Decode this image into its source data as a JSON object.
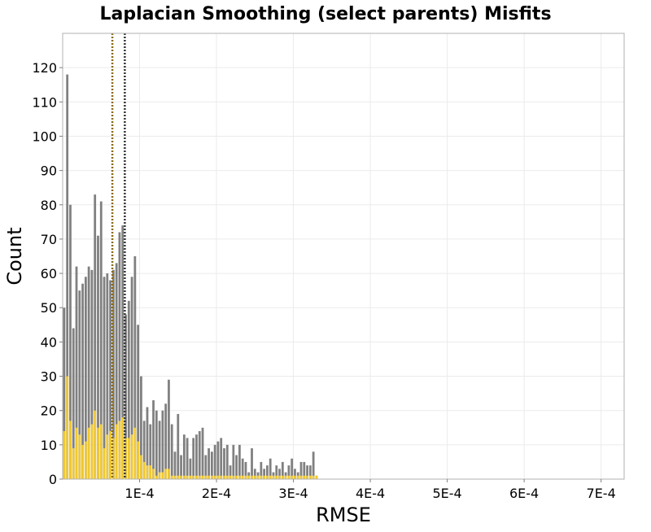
{
  "chart_data": {
    "type": "bar",
    "title": "Laplacian Smoothing (select parents) Misfits",
    "xlabel": "RMSE",
    "ylabel": "Count",
    "xlim": [
      0.0,
      0.00073
    ],
    "ylim": [
      0,
      130
    ],
    "bin_width": 4e-06,
    "x_ticks": [
      {
        "value": 0.0001,
        "label": "1E-4"
      },
      {
        "value": 0.0002,
        "label": "2E-4"
      },
      {
        "value": 0.0003,
        "label": "3E-4"
      },
      {
        "value": 0.0004,
        "label": "4E-4"
      },
      {
        "value": 0.0005,
        "label": "5E-4"
      },
      {
        "value": 0.0006,
        "label": "6E-4"
      },
      {
        "value": 0.0007,
        "label": "7E-4"
      }
    ],
    "y_ticks": [
      {
        "value": 0,
        "label": "0"
      },
      {
        "value": 10,
        "label": "10"
      },
      {
        "value": 20,
        "label": "20"
      },
      {
        "value": 30,
        "label": "30"
      },
      {
        "value": 40,
        "label": "40"
      },
      {
        "value": 50,
        "label": "50"
      },
      {
        "value": 60,
        "label": "60"
      },
      {
        "value": 70,
        "label": "70"
      },
      {
        "value": 80,
        "label": "80"
      },
      {
        "value": 90,
        "label": "90"
      },
      {
        "value": 100,
        "label": "100"
      },
      {
        "value": 110,
        "label": "110"
      },
      {
        "value": 120,
        "label": "120"
      }
    ],
    "grid": true,
    "colors": {
      "all": "#808080",
      "selected": "#f0c830",
      "line_all": "#333333",
      "line_selected": "#8a6a10"
    },
    "series": [
      {
        "color": "#808080",
        "values": [
          50,
          118,
          80,
          44,
          62,
          55,
          57,
          59,
          62,
          61,
          83,
          71,
          81,
          59,
          60,
          58,
          61,
          63,
          72,
          74,
          48,
          52,
          59,
          65,
          45,
          30,
          17,
          21,
          16,
          23,
          20,
          17,
          20,
          22,
          29,
          16,
          8,
          19,
          7,
          13,
          12,
          6,
          12,
          13,
          14,
          15,
          7,
          9,
          8,
          10,
          11,
          12,
          9,
          10,
          4,
          10,
          7,
          10,
          6,
          5,
          2,
          9,
          3,
          2,
          5,
          3,
          4,
          6,
          2,
          4,
          3,
          5,
          2,
          4,
          6,
          3,
          2,
          5,
          5,
          4,
          4,
          8,
          1,
          0,
          0,
          0,
          0,
          0,
          0,
          0,
          0,
          0,
          0,
          0,
          0,
          0,
          0,
          0,
          0,
          0,
          0,
          0,
          0,
          0,
          0,
          0,
          0,
          0,
          0,
          0,
          0,
          0,
          0,
          0,
          0,
          0,
          0,
          0,
          0,
          0,
          0,
          0,
          0,
          0,
          0,
          0,
          0,
          0,
          0,
          0,
          0,
          0,
          0,
          0,
          0,
          0,
          0,
          0,
          0,
          0,
          0,
          0,
          0,
          0,
          0,
          0,
          0,
          0,
          0,
          0,
          0,
          0,
          0,
          0,
          0,
          0,
          0,
          0,
          0,
          0,
          0,
          0,
          0,
          0,
          0,
          0,
          0,
          0,
          0,
          0,
          0,
          0,
          0,
          0,
          0,
          0,
          0,
          0,
          0,
          0,
          0,
          0,
          0,
          0,
          0,
          0,
          0,
          0,
          0,
          0,
          0,
          0,
          0,
          0
        ]
      },
      {
        "color": "#f0c830",
        "values": [
          14,
          30,
          17,
          9,
          15,
          13,
          10,
          11,
          15,
          16,
          20,
          15,
          16,
          9,
          13,
          14,
          12,
          16,
          17,
          18,
          12,
          12,
          13,
          15,
          11,
          7,
          5,
          4,
          4,
          3,
          1,
          2,
          2,
          3,
          3,
          1,
          1,
          1,
          1,
          1,
          1,
          1,
          1,
          1,
          1,
          1,
          1,
          1,
          1,
          1,
          1,
          1,
          1,
          1,
          1,
          1,
          1,
          1,
          1,
          1,
          1,
          1,
          1,
          1,
          1,
          1,
          1,
          1,
          1,
          1,
          1,
          1,
          1,
          1,
          1,
          1,
          1,
          1,
          1,
          1,
          1,
          1,
          1,
          0,
          0,
          0,
          0,
          0,
          0,
          0,
          0,
          0,
          0,
          0,
          0,
          0,
          0,
          0,
          0,
          0,
          0,
          0,
          0,
          0,
          0,
          0,
          0,
          0,
          0,
          0,
          0,
          0,
          0,
          0,
          0,
          0,
          0,
          0,
          0,
          0,
          0,
          0,
          0,
          0,
          0,
          0,
          0,
          0,
          0,
          0,
          0,
          0,
          0,
          0,
          0,
          0,
          0,
          0,
          0,
          0,
          0,
          0,
          0,
          0,
          0,
          0,
          0,
          0,
          0,
          0,
          0,
          0,
          0,
          0,
          0,
          0,
          0,
          0,
          0,
          0,
          0,
          0,
          0,
          0,
          0,
          0,
          0,
          0,
          0,
          0,
          0,
          0,
          0,
          0,
          0,
          0,
          0,
          0,
          0,
          0,
          0,
          0,
          0,
          0,
          0,
          0,
          0,
          0,
          0,
          0,
          0,
          0,
          0
        ]
      }
    ],
    "reference_lines": [
      {
        "x": 6.46e-05,
        "color": "#8a6a10",
        "style": "dotted"
      },
      {
        "x": 8.08e-05,
        "color": "#333333",
        "style": "dotted"
      }
    ]
  }
}
